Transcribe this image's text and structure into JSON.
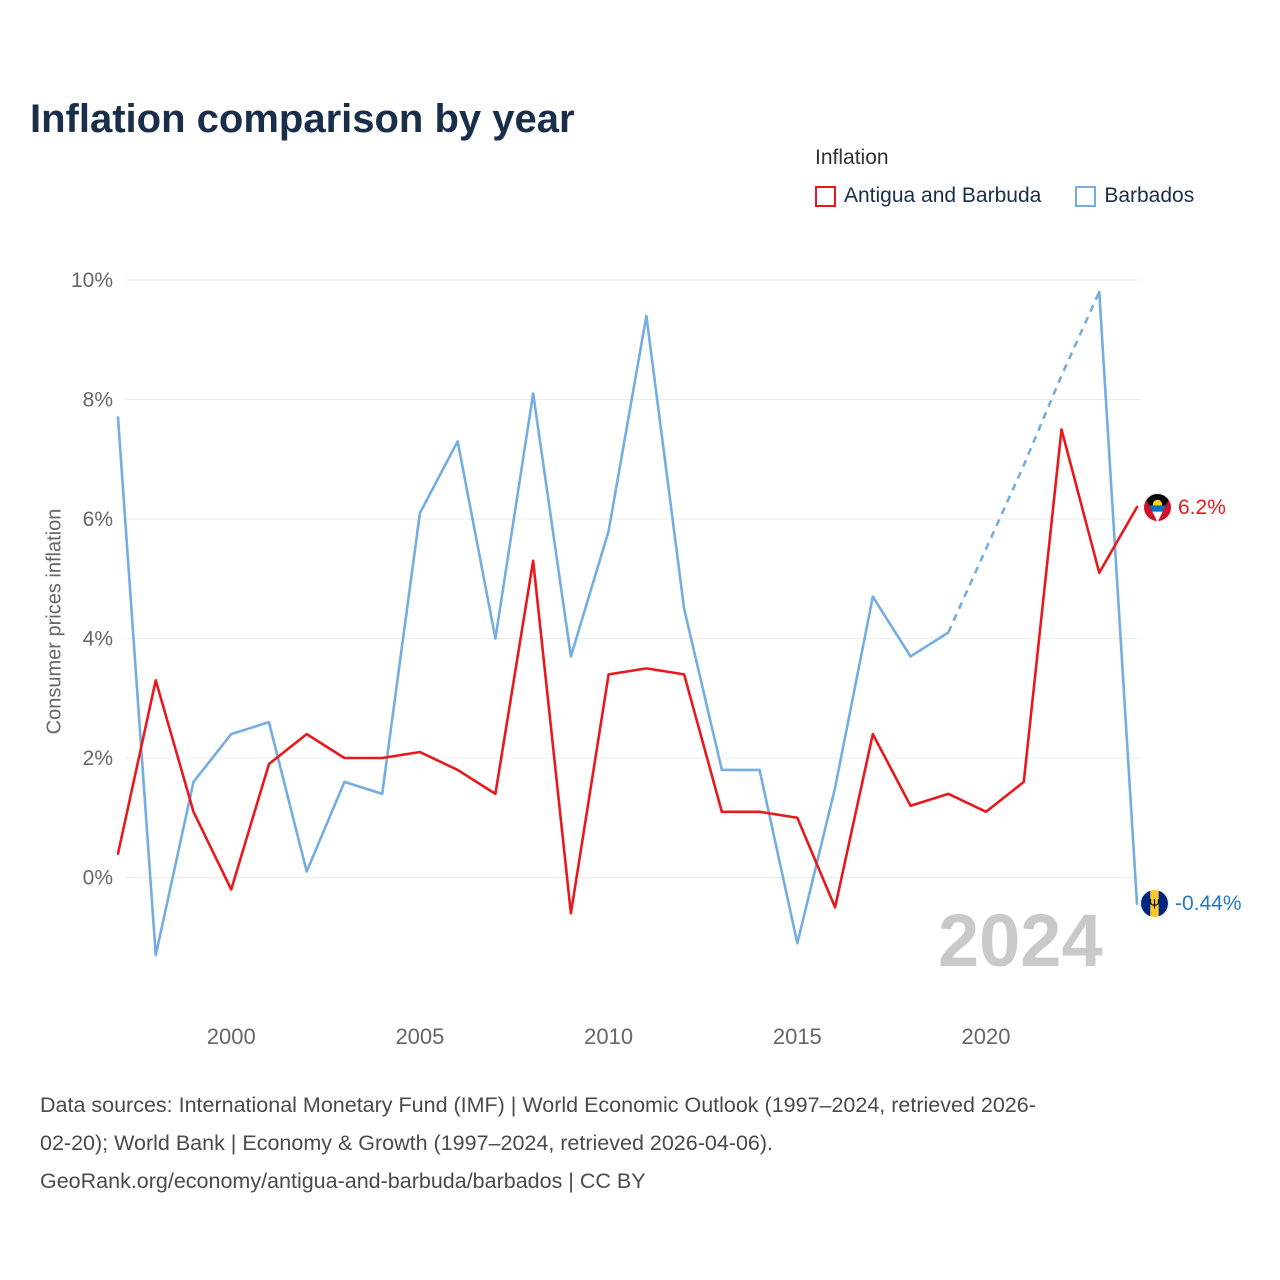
{
  "title": "Inflation comparison by year",
  "legend": {
    "title": "Inflation",
    "items": [
      {
        "label": "Antigua and Barbuda",
        "color": "#e8191d"
      },
      {
        "label": "Barbados",
        "color": "#74ade0"
      }
    ]
  },
  "watermark": "2024",
  "end_labels": {
    "antigua": {
      "value": "6.2%",
      "color": "#e8191d",
      "flag": "antigua-and-barbuda-flag"
    },
    "barbados": {
      "value": "-0.44%",
      "color": "#2778c4",
      "flag": "barbados-flag"
    }
  },
  "footer": {
    "lines": [
      "Data sources: International Monetary Fund (IMF) | World Economic Outlook (1997–2024, retrieved 2026-",
      "02-20); World Bank | Economy & Growth (1997–2024, retrieved 2026-04-06).",
      "GeoRank.org/economy/antigua-and-barbuda/barbados | CC BY"
    ]
  },
  "chart_data": {
    "type": "line",
    "title": "Inflation comparison by year",
    "ylabel": "Consumer prices inflation",
    "xlabel": "",
    "x": [
      1997,
      1998,
      1999,
      2000,
      2001,
      2002,
      2003,
      2004,
      2005,
      2006,
      2007,
      2008,
      2009,
      2010,
      2011,
      2012,
      2013,
      2014,
      2015,
      2016,
      2017,
      2018,
      2019,
      2020,
      2021,
      2022,
      2023,
      2024
    ],
    "xticks": [
      2000,
      2005,
      2010,
      2015,
      2020
    ],
    "yticks": [
      0,
      2,
      4,
      6,
      8,
      10
    ],
    "ytick_suffix": "%",
    "ylim": [
      -2.0,
      10.5
    ],
    "grid": "horizontal",
    "legend_position": "top-right",
    "series": [
      {
        "name": "Antigua and Barbuda",
        "color": "#e8191d",
        "values": [
          0.4,
          3.3,
          1.1,
          -0.2,
          1.9,
          2.4,
          2.0,
          2.0,
          2.1,
          1.8,
          1.4,
          5.3,
          -0.6,
          3.4,
          3.5,
          3.4,
          1.1,
          1.1,
          1.0,
          -0.5,
          2.4,
          1.2,
          1.4,
          1.1,
          1.6,
          7.5,
          5.1,
          6.2
        ],
        "end_label": "6.2%"
      },
      {
        "name": "Barbados",
        "color": "#74ade0",
        "values": [
          7.7,
          -1.3,
          1.6,
          2.4,
          2.6,
          0.1,
          1.6,
          1.4,
          6.1,
          7.3,
          4.0,
          8.1,
          3.7,
          5.8,
          9.4,
          4.5,
          1.8,
          1.8,
          -1.1,
          1.5,
          4.7,
          3.7,
          4.1,
          5.5,
          6.9,
          8.4,
          9.8,
          -0.44
        ],
        "dashed_segment": {
          "from": 2019,
          "to": 2023,
          "note": "estimated values shown dashed"
        },
        "end_label": "-0.44%"
      }
    ]
  }
}
